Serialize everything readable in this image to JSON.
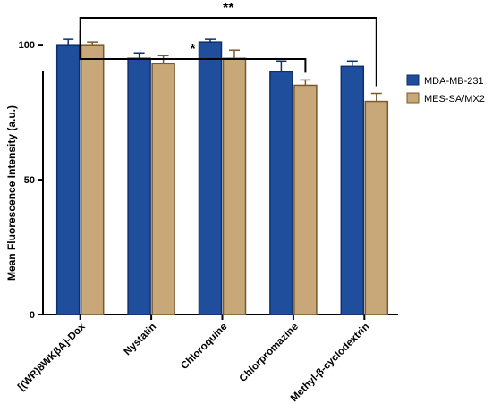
{
  "chart_data": {
    "type": "bar",
    "title": "",
    "xlabel": "",
    "ylabel": "Mean Fluorescence Intensity (a.u.)",
    "ylim": [
      0,
      110
    ],
    "yticks": [
      0,
      50,
      100
    ],
    "grid": false,
    "legend_position": "right",
    "categories": [
      "[(WR)8WKβA]-Dox",
      "Nystatin",
      "Chloroquine",
      "Chlorpromazine",
      "Methyl-β-cyclodextrin"
    ],
    "series": [
      {
        "name": "MDA-MB-231",
        "color": "#1f4e9c",
        "edge": "#0d2f6e",
        "values": [
          100,
          95,
          101,
          90,
          92
        ],
        "errors": [
          2,
          2,
          1,
          4,
          2
        ]
      },
      {
        "name": "MES-SA/MX2",
        "color": "#c8a878",
        "edge": "#7a5a2a",
        "values": [
          100,
          93,
          95,
          85,
          79
        ],
        "errors": [
          1,
          3,
          3,
          2,
          3
        ]
      }
    ],
    "significance": [
      {
        "from": 0,
        "to": 3,
        "label": "*"
      },
      {
        "from": 0,
        "to": 4,
        "label": "**"
      }
    ]
  }
}
